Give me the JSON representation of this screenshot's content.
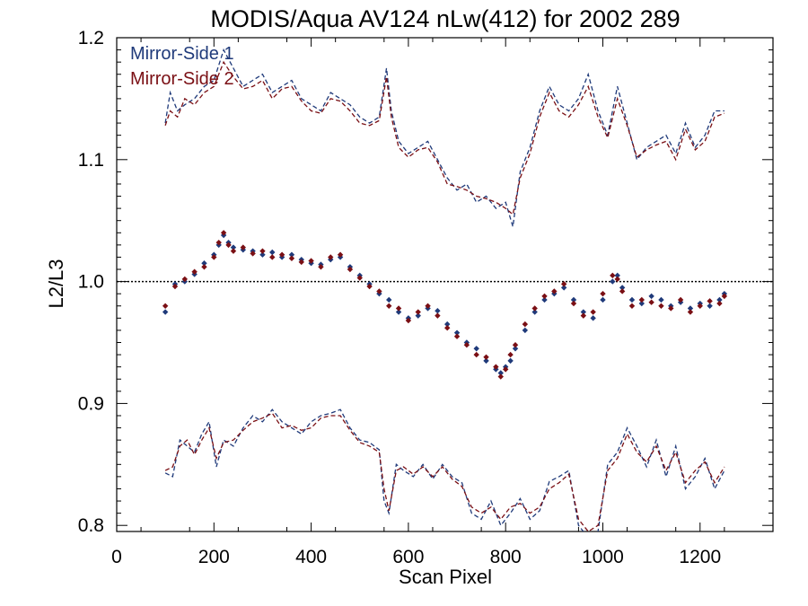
{
  "chart_data": {
    "type": "scatter",
    "title": "MODIS/Aqua AV124 nLw(412) for 2002 289",
    "xlabel": "Scan Pixel",
    "ylabel": "L2/L3",
    "xlim": [
      0,
      1350
    ],
    "ylim": [
      0.795,
      1.2
    ],
    "xticks": [
      0,
      200,
      400,
      600,
      800,
      1000,
      1200
    ],
    "xtick_labels": [
      "0",
      "200",
      "400",
      "600",
      "800",
      "1000",
      "1200"
    ],
    "yticks": [
      0.8,
      0.9,
      1.0,
      1.1,
      1.2
    ],
    "ytick_labels": [
      "0.8",
      "0.9",
      "1.0",
      "1.1",
      "1.2"
    ],
    "reference_line": 1.0,
    "legend_position": "top-left",
    "colors": {
      "ms1": "#1f3a7a",
      "ms2": "#7a0f14"
    },
    "series": [
      {
        "name": "Mirror-Side 1",
        "color": "#1f3a7a",
        "mean_points": {
          "x": [
            100,
            120,
            140,
            160,
            180,
            200,
            210,
            220,
            230,
            240,
            260,
            280,
            300,
            320,
            340,
            360,
            380,
            400,
            420,
            440,
            460,
            480,
            500,
            520,
            540,
            560,
            580,
            600,
            620,
            640,
            660,
            680,
            700,
            720,
            740,
            760,
            780,
            790,
            800,
            810,
            820,
            840,
            860,
            880,
            900,
            920,
            940,
            960,
            980,
            1000,
            1020,
            1030,
            1040,
            1060,
            1080,
            1100,
            1120,
            1140,
            1160,
            1180,
            1200,
            1220,
            1240,
            1250
          ],
          "y": [
            0.975,
            0.998,
            1.0,
            1.006,
            1.015,
            1.022,
            1.03,
            1.038,
            1.032,
            1.028,
            1.026,
            1.025,
            1.022,
            1.024,
            1.02,
            1.022,
            1.018,
            1.015,
            1.014,
            1.018,
            1.02,
            1.012,
            1.005,
            0.998,
            0.99,
            0.985,
            0.975,
            0.97,
            0.972,
            0.978,
            0.976,
            0.965,
            0.958,
            0.95,
            0.945,
            0.935,
            0.928,
            0.925,
            0.93,
            0.935,
            0.945,
            0.96,
            0.975,
            0.985,
            0.99,
            0.995,
            0.985,
            0.975,
            0.97,
            0.985,
            1.0,
            1.005,
            0.995,
            0.985,
            0.982,
            0.988,
            0.985,
            0.98,
            0.983,
            0.978,
            0.982,
            0.98,
            0.985,
            0.99
          ]
        },
        "upper_envelope": {
          "x": [
            100,
            110,
            125,
            140,
            160,
            180,
            200,
            220,
            240,
            260,
            280,
            300,
            320,
            340,
            360,
            380,
            400,
            420,
            440,
            460,
            480,
            500,
            520,
            540,
            555,
            565,
            580,
            600,
            620,
            640,
            660,
            680,
            700,
            720,
            740,
            760,
            780,
            800,
            815,
            830,
            850,
            870,
            890,
            910,
            930,
            950,
            970,
            990,
            1010,
            1030,
            1050,
            1070,
            1090,
            1110,
            1130,
            1150,
            1170,
            1190,
            1210,
            1230,
            1250
          ],
          "y": [
            1.13,
            1.155,
            1.14,
            1.145,
            1.15,
            1.16,
            1.165,
            1.19,
            1.175,
            1.16,
            1.165,
            1.17,
            1.155,
            1.16,
            1.165,
            1.15,
            1.145,
            1.14,
            1.155,
            1.15,
            1.145,
            1.135,
            1.13,
            1.135,
            1.175,
            1.14,
            1.115,
            1.105,
            1.11,
            1.115,
            1.1,
            1.085,
            1.075,
            1.08,
            1.065,
            1.07,
            1.06,
            1.065,
            1.045,
            1.09,
            1.11,
            1.14,
            1.16,
            1.145,
            1.14,
            1.15,
            1.17,
            1.14,
            1.12,
            1.16,
            1.13,
            1.1,
            1.11,
            1.115,
            1.12,
            1.105,
            1.13,
            1.11,
            1.12,
            1.14,
            1.14
          ]
        },
        "lower_envelope": {
          "x": [
            100,
            115,
            130,
            145,
            160,
            175,
            190,
            205,
            220,
            240,
            260,
            280,
            300,
            320,
            340,
            360,
            380,
            400,
            420,
            440,
            460,
            480,
            500,
            520,
            540,
            550,
            560,
            575,
            590,
            610,
            630,
            650,
            670,
            690,
            710,
            730,
            750,
            770,
            790,
            810,
            830,
            850,
            870,
            890,
            910,
            930,
            950,
            970,
            990,
            1010,
            1030,
            1050,
            1070,
            1090,
            1110,
            1130,
            1150,
            1170,
            1190,
            1210,
            1230,
            1250
          ],
          "y": [
            0.843,
            0.84,
            0.87,
            0.865,
            0.86,
            0.875,
            0.885,
            0.848,
            0.87,
            0.865,
            0.88,
            0.89,
            0.885,
            0.895,
            0.885,
            0.88,
            0.875,
            0.885,
            0.89,
            0.892,
            0.895,
            0.88,
            0.87,
            0.868,
            0.862,
            0.82,
            0.81,
            0.85,
            0.845,
            0.84,
            0.85,
            0.838,
            0.85,
            0.84,
            0.835,
            0.81,
            0.805,
            0.82,
            0.8,
            0.81,
            0.822,
            0.805,
            0.812,
            0.836,
            0.84,
            0.845,
            0.8,
            0.79,
            0.795,
            0.85,
            0.86,
            0.88,
            0.865,
            0.848,
            0.87,
            0.84,
            0.865,
            0.83,
            0.84,
            0.855,
            0.83,
            0.845
          ]
        }
      },
      {
        "name": "Mirror-Side 2",
        "color": "#7a0f14",
        "mean_points": {
          "x": [
            100,
            120,
            140,
            160,
            180,
            200,
            210,
            220,
            230,
            240,
            260,
            280,
            300,
            320,
            340,
            360,
            380,
            400,
            420,
            440,
            460,
            480,
            500,
            520,
            540,
            560,
            580,
            600,
            620,
            640,
            660,
            680,
            700,
            720,
            740,
            760,
            780,
            790,
            800,
            810,
            820,
            840,
            860,
            880,
            900,
            920,
            940,
            960,
            980,
            1000,
            1020,
            1030,
            1040,
            1060,
            1080,
            1100,
            1120,
            1140,
            1160,
            1180,
            1200,
            1220,
            1240,
            1250
          ],
          "y": [
            0.98,
            0.996,
            1.002,
            1.008,
            1.012,
            1.02,
            1.032,
            1.04,
            1.03,
            1.025,
            1.028,
            1.023,
            1.025,
            1.02,
            1.022,
            1.019,
            1.016,
            1.017,
            1.012,
            1.02,
            1.022,
            1.01,
            1.003,
            0.996,
            0.992,
            0.98,
            0.978,
            0.968,
            0.975,
            0.98,
            0.972,
            0.962,
            0.955,
            0.948,
            0.94,
            0.938,
            0.93,
            0.922,
            0.928,
            0.94,
            0.948,
            0.965,
            0.978,
            0.988,
            0.992,
            0.998,
            0.982,
            0.972,
            0.975,
            0.99,
            1.005,
            1.002,
            0.992,
            0.98,
            0.985,
            0.983,
            0.98,
            0.978,
            0.985,
            0.975,
            0.98,
            0.984,
            0.982,
            0.988
          ]
        },
        "upper_envelope": {
          "x": [
            100,
            110,
            125,
            140,
            160,
            180,
            200,
            220,
            240,
            260,
            280,
            300,
            320,
            340,
            360,
            380,
            400,
            420,
            440,
            460,
            480,
            500,
            520,
            540,
            555,
            565,
            580,
            600,
            620,
            640,
            660,
            680,
            700,
            720,
            740,
            760,
            780,
            800,
            815,
            830,
            850,
            870,
            890,
            910,
            930,
            950,
            970,
            990,
            1010,
            1030,
            1050,
            1070,
            1090,
            1110,
            1130,
            1150,
            1170,
            1190,
            1210,
            1230,
            1250
          ],
          "y": [
            1.128,
            1.14,
            1.135,
            1.15,
            1.145,
            1.155,
            1.16,
            1.18,
            1.168,
            1.158,
            1.16,
            1.165,
            1.15,
            1.158,
            1.16,
            1.148,
            1.14,
            1.138,
            1.15,
            1.148,
            1.14,
            1.13,
            1.128,
            1.132,
            1.168,
            1.135,
            1.11,
            1.102,
            1.108,
            1.11,
            1.098,
            1.08,
            1.078,
            1.075,
            1.07,
            1.068,
            1.065,
            1.06,
            1.055,
            1.085,
            1.105,
            1.135,
            1.155,
            1.14,
            1.135,
            1.145,
            1.16,
            1.135,
            1.118,
            1.15,
            1.128,
            1.102,
            1.108,
            1.112,
            1.115,
            1.1,
            1.125,
            1.108,
            1.115,
            1.135,
            1.138
          ]
        },
        "lower_envelope": {
          "x": [
            100,
            115,
            130,
            145,
            160,
            175,
            190,
            205,
            220,
            240,
            260,
            280,
            300,
            320,
            340,
            360,
            380,
            400,
            420,
            440,
            460,
            480,
            500,
            520,
            540,
            550,
            560,
            575,
            590,
            610,
            630,
            650,
            670,
            690,
            710,
            730,
            750,
            770,
            790,
            810,
            830,
            850,
            870,
            890,
            910,
            930,
            950,
            970,
            990,
            1010,
            1030,
            1050,
            1070,
            1090,
            1110,
            1130,
            1150,
            1170,
            1190,
            1210,
            1230,
            1250
          ],
          "y": [
            0.845,
            0.848,
            0.865,
            0.87,
            0.858,
            0.87,
            0.88,
            0.855,
            0.868,
            0.87,
            0.878,
            0.885,
            0.888,
            0.892,
            0.88,
            0.882,
            0.878,
            0.88,
            0.888,
            0.89,
            0.89,
            0.878,
            0.868,
            0.865,
            0.86,
            0.83,
            0.812,
            0.845,
            0.848,
            0.842,
            0.848,
            0.84,
            0.848,
            0.838,
            0.832,
            0.815,
            0.81,
            0.815,
            0.805,
            0.815,
            0.818,
            0.81,
            0.815,
            0.83,
            0.835,
            0.842,
            0.805,
            0.795,
            0.8,
            0.845,
            0.855,
            0.875,
            0.86,
            0.852,
            0.865,
            0.845,
            0.86,
            0.835,
            0.845,
            0.852,
            0.835,
            0.848
          ]
        }
      }
    ]
  }
}
